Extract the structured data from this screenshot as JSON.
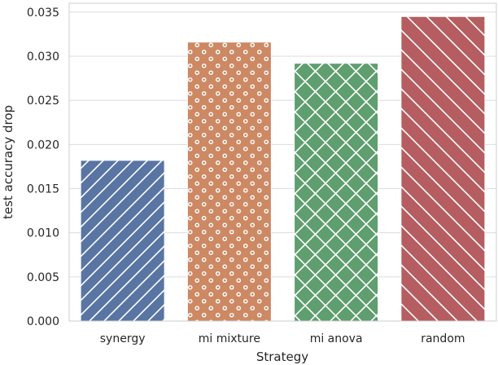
{
  "chart_data": {
    "type": "bar",
    "categories": [
      "synergy",
      "mi mixture",
      "mi anova",
      "random"
    ],
    "values": [
      0.0182,
      0.0316,
      0.0292,
      0.0345
    ],
    "colors": [
      "#5975a4",
      "#cc8963",
      "#5f9e6e",
      "#b55d60"
    ],
    "hatches": [
      "forward-diagonal",
      "dots",
      "crosshatch",
      "back-diagonal"
    ],
    "xlabel": "Strategy",
    "ylabel": "test accuracy drop",
    "ylim": [
      0,
      0.036
    ],
    "yticks": [
      "0.000",
      "0.005",
      "0.010",
      "0.015",
      "0.020",
      "0.025",
      "0.030",
      "0.035"
    ],
    "ytick_values": [
      0,
      0.005,
      0.01,
      0.015,
      0.02,
      0.025,
      0.03,
      0.035
    ],
    "grid": "horizontal",
    "background": "#ffffff",
    "grid_color": "#dcdcdc"
  }
}
